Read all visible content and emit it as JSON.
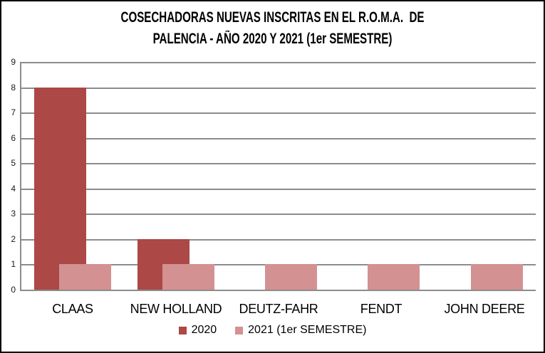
{
  "title": {
    "line1": "COSECHADORAS NUEVAS INSCRITAS EN EL R.O.M.A.  DE",
    "line2": "PALENCIA - AÑO 2020 Y 2021 (1er SEMESTRE)"
  },
  "chart_data": {
    "type": "bar",
    "title": "COSECHADORAS NUEVAS INSCRITAS EN EL R.O.M.A. DE PALENCIA - AÑO 2020 Y 2021 (1er SEMESTRE)",
    "categories": [
      "CLAAS",
      "NEW HOLLAND",
      "DEUTZ-FAHR",
      "FENDT",
      "JOHN DEERE"
    ],
    "series": [
      {
        "name": "2020",
        "color": "#AC4846",
        "values": [
          8,
          2,
          0,
          0,
          0
        ]
      },
      {
        "name": "2021 (1er SEMESTRE)",
        "color": "#D39192",
        "values": [
          1,
          1,
          1,
          1,
          1
        ]
      }
    ],
    "xlabel": "",
    "ylabel": "",
    "ylim": [
      0,
      9
    ],
    "yticks": [
      0,
      1,
      2,
      3,
      4,
      5,
      6,
      7,
      8,
      9
    ],
    "grid": true,
    "legend_position": "bottom"
  },
  "colors": {
    "grid": "#8C8C8C",
    "axis": "#8C8C8C",
    "border": "#000000",
    "background": "#FFFFFF",
    "text": "#000000"
  }
}
